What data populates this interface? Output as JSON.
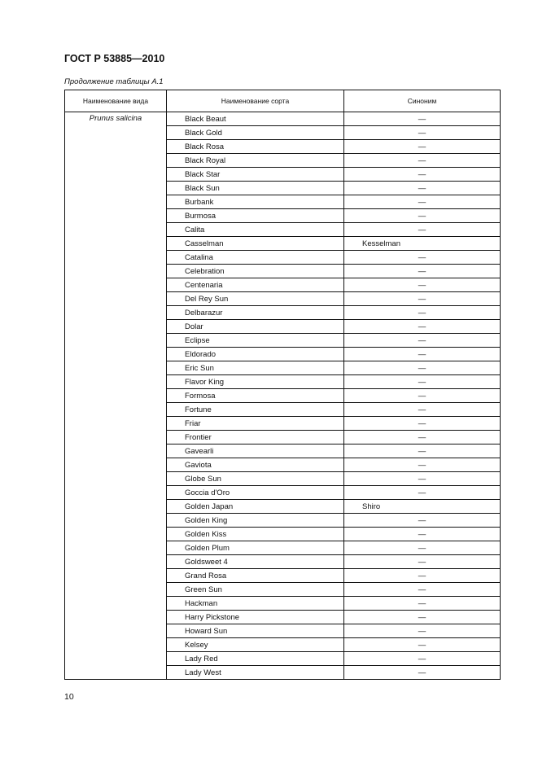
{
  "header": {
    "standard": "ГОСТ Р 53885—2010",
    "caption": "Продолжение таблицы А.1"
  },
  "table": {
    "columns": [
      "Наименование вида",
      "Наименование сорта",
      "Синоним"
    ],
    "species": "Prunus salicina",
    "rows": [
      [
        "Black Beaut",
        "—"
      ],
      [
        "Black Gold",
        "—"
      ],
      [
        "Black Rosa",
        "—"
      ],
      [
        "Black Royal",
        "—"
      ],
      [
        "Black Star",
        "—"
      ],
      [
        "Black Sun",
        "—"
      ],
      [
        "Burbank",
        "—"
      ],
      [
        "Burmosa",
        "—"
      ],
      [
        "Calita",
        "—"
      ],
      [
        "Casselman",
        "Kesselman"
      ],
      [
        "Catalina",
        "—"
      ],
      [
        "Celebration",
        "—"
      ],
      [
        "Centenaria",
        "—"
      ],
      [
        "Del Rey Sun",
        "—"
      ],
      [
        "Delbarazur",
        "—"
      ],
      [
        "Dolar",
        "—"
      ],
      [
        "Eclipse",
        "—"
      ],
      [
        "Eldorado",
        "—"
      ],
      [
        "Eric Sun",
        "—"
      ],
      [
        "Flavor King",
        "—"
      ],
      [
        "Formosa",
        "—"
      ],
      [
        "Fortune",
        "—"
      ],
      [
        "Friar",
        "—"
      ],
      [
        "Frontier",
        "—"
      ],
      [
        "Gavearli",
        "—"
      ],
      [
        "Gaviota",
        "—"
      ],
      [
        "Globe Sun",
        "—"
      ],
      [
        "Goccia d'Oro",
        "—"
      ],
      [
        "Golden Japan",
        "Shiro"
      ],
      [
        "Golden King",
        "—"
      ],
      [
        "Golden Kiss",
        "—"
      ],
      [
        "Golden Plum",
        "—"
      ],
      [
        "Goldsweet 4",
        "—"
      ],
      [
        "Grand Rosa",
        "—"
      ],
      [
        "Green Sun",
        "—"
      ],
      [
        "Hackman",
        "—"
      ],
      [
        "Harry Pickstone",
        "—"
      ],
      [
        "Howard Sun",
        "—"
      ],
      [
        "Kelsey",
        "—"
      ],
      [
        "Lady Red",
        "—"
      ],
      [
        "Lady West",
        "—"
      ]
    ]
  },
  "footer": {
    "page_number": "10"
  }
}
